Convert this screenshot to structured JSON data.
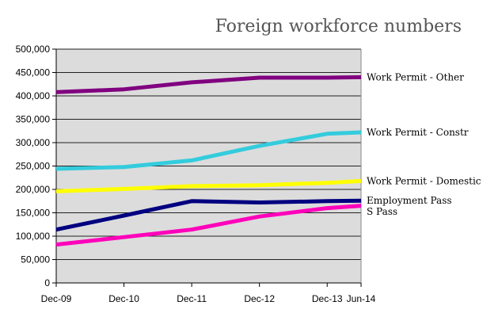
{
  "chart_data": {
    "type": "line",
    "title": "Foreign workforce numbers",
    "xlabel": "",
    "ylabel": "",
    "categories": [
      "Dec-09",
      "Dec-10",
      "Dec-11",
      "Dec-12",
      "Dec-13",
      "Jun-14"
    ],
    "x_positions": [
      0,
      1,
      2,
      3,
      4,
      4.5
    ],
    "ylim": [
      0,
      500000
    ],
    "yticks": [
      0,
      50000,
      100000,
      150000,
      200000,
      250000,
      300000,
      350000,
      400000,
      450000,
      500000
    ],
    "ytick_labels": [
      "0",
      "50,000",
      "100,000",
      "150,000",
      "200,000",
      "250,000",
      "300,000",
      "350,000",
      "400,000",
      "450,000",
      "500,000"
    ],
    "grid": "horizontal",
    "legend": "right-end labels",
    "series": [
      {
        "name": "Work Permit - Other",
        "color": "#800080",
        "values": [
          408000,
          414000,
          429000,
          439000,
          439000,
          440000
        ]
      },
      {
        "name": "Work Permit - Constr",
        "color": "#33CCDD",
        "values": [
          244000,
          248000,
          262000,
          293000,
          319000,
          322000
        ]
      },
      {
        "name": "Work Permit - Domestic",
        "color": "#FFFF00",
        "values": [
          196000,
          201000,
          207000,
          209000,
          214000,
          218000
        ]
      },
      {
        "name": "Employment Pass",
        "color": "#000080",
        "values": [
          114000,
          144000,
          175000,
          172000,
          175000,
          176000
        ]
      },
      {
        "name": "S Pass",
        "color": "#FF00BB",
        "values": [
          82000,
          98000,
          114000,
          142000,
          160000,
          165000
        ]
      }
    ]
  }
}
